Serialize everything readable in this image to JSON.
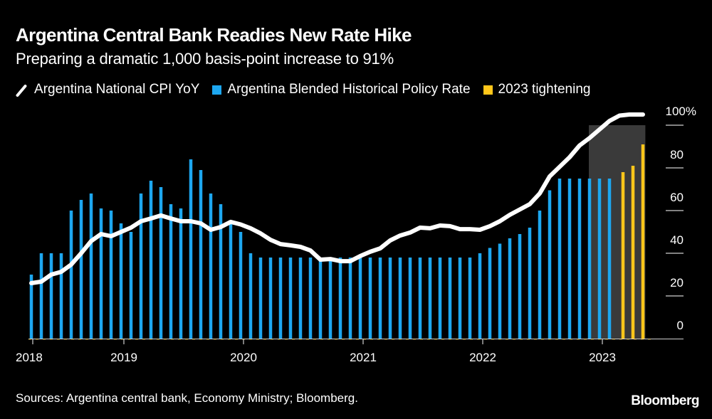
{
  "header": {
    "title": "Argentina Central Bank Readies New Rate Hike",
    "subtitle": "Preparing a dramatic 1,000 basis-point increase to 91%"
  },
  "legend": [
    {
      "label": "Argentina National CPI YoY",
      "type": "line",
      "color": "#ffffff"
    },
    {
      "label": "Argentina Blended Historical Policy Rate",
      "type": "bar",
      "color": "#1da7f0"
    },
    {
      "label": "2023 tightening",
      "type": "bar",
      "color": "#ffc61a"
    }
  ],
  "footer": {
    "source": "Sources: Argentina central bank, Economy Ministry; Bloomberg.",
    "brand": "Bloomberg"
  },
  "chart_data": {
    "type": "bar",
    "title": "Argentina Central Bank Readies New Rate Hike",
    "subtitle": "Preparing a dramatic 1,000 basis-point increase to 91%",
    "xlabel": "",
    "ylabel": "",
    "ylim": [
      0,
      100
    ],
    "y_ticks": [
      0,
      20,
      40,
      60,
      80,
      100
    ],
    "y_tick_labels": [
      "0",
      "20",
      "40",
      "60",
      "80",
      "100%"
    ],
    "y_axis_side": "right",
    "x_tick_labels": [
      "2018",
      "2019",
      "2020",
      "2021",
      "2022",
      "2023"
    ],
    "grid": false,
    "legend_position": "top-left",
    "highlight_region": {
      "from": "2022-11",
      "to": "2023-04",
      "y_top": 100,
      "color": "#3a3a3a"
    },
    "months": [
      "2018-03",
      "2018-04",
      "2018-05",
      "2018-06",
      "2018-07",
      "2018-08",
      "2018-09",
      "2018-10",
      "2018-11",
      "2018-12",
      "2019-01",
      "2019-02",
      "2019-03",
      "2019-04",
      "2019-05",
      "2019-06",
      "2019-07",
      "2019-08",
      "2019-09",
      "2019-10",
      "2019-11",
      "2019-12",
      "2020-01",
      "2020-02",
      "2020-03",
      "2020-04",
      "2020-05",
      "2020-06",
      "2020-07",
      "2020-08",
      "2020-09",
      "2020-10",
      "2020-11",
      "2020-12",
      "2021-01",
      "2021-02",
      "2021-03",
      "2021-04",
      "2021-05",
      "2021-06",
      "2021-07",
      "2021-08",
      "2021-09",
      "2021-10",
      "2021-11",
      "2021-12",
      "2022-01",
      "2022-02",
      "2022-03",
      "2022-04",
      "2022-05",
      "2022-06",
      "2022-07",
      "2022-08",
      "2022-09",
      "2022-10",
      "2022-11",
      "2022-12",
      "2023-01"
    ],
    "series": [
      {
        "name": "Argentina Blended Historical Policy Rate",
        "type": "bar",
        "color": "#1da7f0",
        "values": [
          30,
          40,
          40,
          40,
          60,
          65,
          68,
          61,
          60,
          54,
          50,
          68,
          74,
          71,
          63,
          61,
          84,
          79,
          68,
          63,
          54,
          50,
          40,
          38,
          38,
          38,
          38,
          38,
          38,
          38,
          38,
          38,
          38,
          38,
          38,
          38,
          38,
          38,
          38,
          38,
          38,
          38,
          38,
          38,
          38,
          40,
          42.5,
          44.5,
          47,
          49,
          52,
          60,
          69.5,
          75,
          75,
          75,
          75,
          75,
          75
        ]
      },
      {
        "name": "2023 tightening",
        "type": "bar",
        "color": "#ffc61a",
        "labels": [
          "2023-03",
          "2023-04a",
          "2023-04b"
        ],
        "values": [
          78,
          81,
          91
        ]
      },
      {
        "name": "Argentina National CPI YoY",
        "type": "line",
        "color": "#ffffff",
        "values": [
          26,
          26.7,
          30,
          31.3,
          34.7,
          40,
          45.7,
          49,
          48,
          50,
          52,
          55,
          56.3,
          57.7,
          56.3,
          55,
          55,
          54,
          51,
          52.3,
          54.7,
          53.5,
          51.7,
          49.3,
          46.3,
          44.3,
          43.7,
          43,
          41.3,
          37,
          37.3,
          36.3,
          36.3,
          38.7,
          40.7,
          42.3,
          46,
          48.3,
          49.7,
          52,
          51.7,
          53,
          52.7,
          51.3,
          51.3,
          51,
          52.7,
          55,
          58,
          60.5,
          63,
          68,
          76,
          80.5,
          85,
          90.5,
          94,
          98,
          102,
          104.5,
          105,
          105
        ]
      }
    ]
  }
}
